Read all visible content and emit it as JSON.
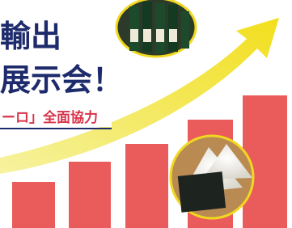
{
  "banner": {
    "headline_line1": "輸出",
    "headline_line2": "展示会！",
    "tagline": "ーロ」全面協力"
  }
}
